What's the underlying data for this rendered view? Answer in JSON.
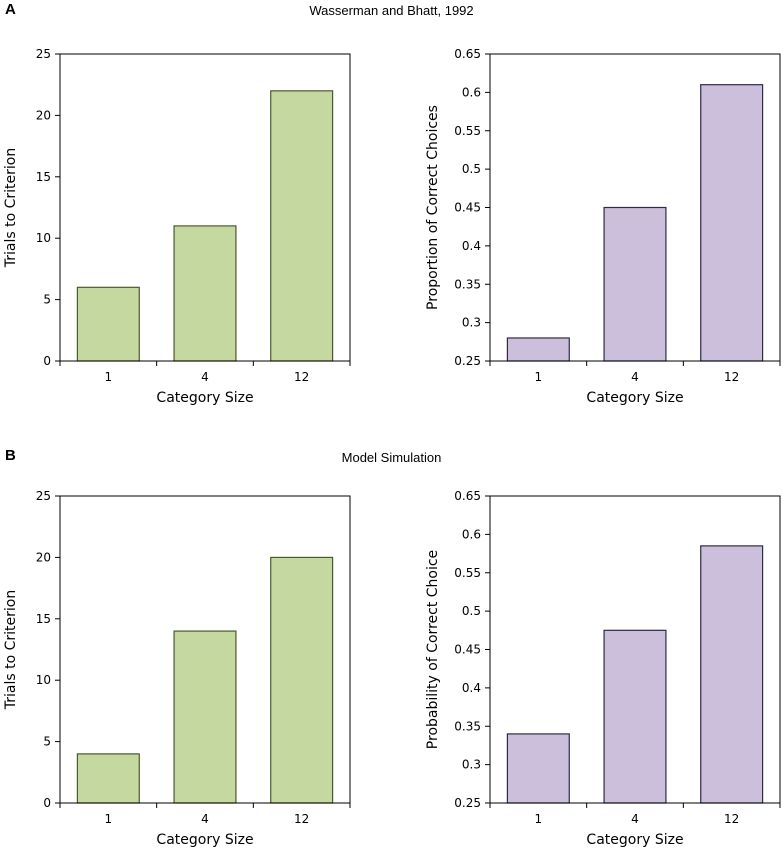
{
  "panels": [
    {
      "letter": "A",
      "title": "Wasserman and Bhatt, 1992"
    },
    {
      "letter": "B",
      "title": "Model Simulation"
    }
  ],
  "colors": {
    "green_fill": "#c4d8a0",
    "green_stroke": "#4a5a2a",
    "purple_fill": "#cbbfdc",
    "purple_stroke": "#2e2a4a"
  },
  "chart_data": [
    {
      "type": "bar",
      "panel": "A",
      "title": "",
      "categories": [
        "1",
        "4",
        "12"
      ],
      "values": [
        6,
        11,
        22
      ],
      "xlabel": "Category Size",
      "ylabel": "Trials to Criterion",
      "ylim": [
        0,
        25
      ],
      "ticks": [
        "0",
        "5",
        "10",
        "15",
        "20",
        "25"
      ],
      "color": "green"
    },
    {
      "type": "bar",
      "panel": "A",
      "title": "",
      "categories": [
        "1",
        "4",
        "12"
      ],
      "values": [
        0.28,
        0.45,
        0.61
      ],
      "xlabel": "Category Size",
      "ylabel": "Proportion of Correct Choices",
      "ylim": [
        0.25,
        0.65
      ],
      "ticks": [
        "0.25",
        "0.3",
        "0.35",
        "0.4",
        "0.45",
        "0.5",
        "0.55",
        "0.6",
        "0.65"
      ],
      "color": "purple"
    },
    {
      "type": "bar",
      "panel": "B",
      "title": "",
      "categories": [
        "1",
        "4",
        "12"
      ],
      "values": [
        4,
        14,
        20
      ],
      "xlabel": "Category Size",
      "ylabel": "Trials to Criterion",
      "ylim": [
        0,
        25
      ],
      "ticks": [
        "0",
        "5",
        "10",
        "15",
        "20",
        "25"
      ],
      "color": "green"
    },
    {
      "type": "bar",
      "panel": "B",
      "title": "",
      "categories": [
        "1",
        "4",
        "12"
      ],
      "values": [
        0.34,
        0.475,
        0.585
      ],
      "xlabel": "Category Size",
      "ylabel": "Probability of Correct Choice",
      "ylim": [
        0.25,
        0.65
      ],
      "ticks": [
        "0.25",
        "0.3",
        "0.35",
        "0.4",
        "0.45",
        "0.5",
        "0.55",
        "0.6",
        "0.65"
      ],
      "color": "purple"
    }
  ]
}
